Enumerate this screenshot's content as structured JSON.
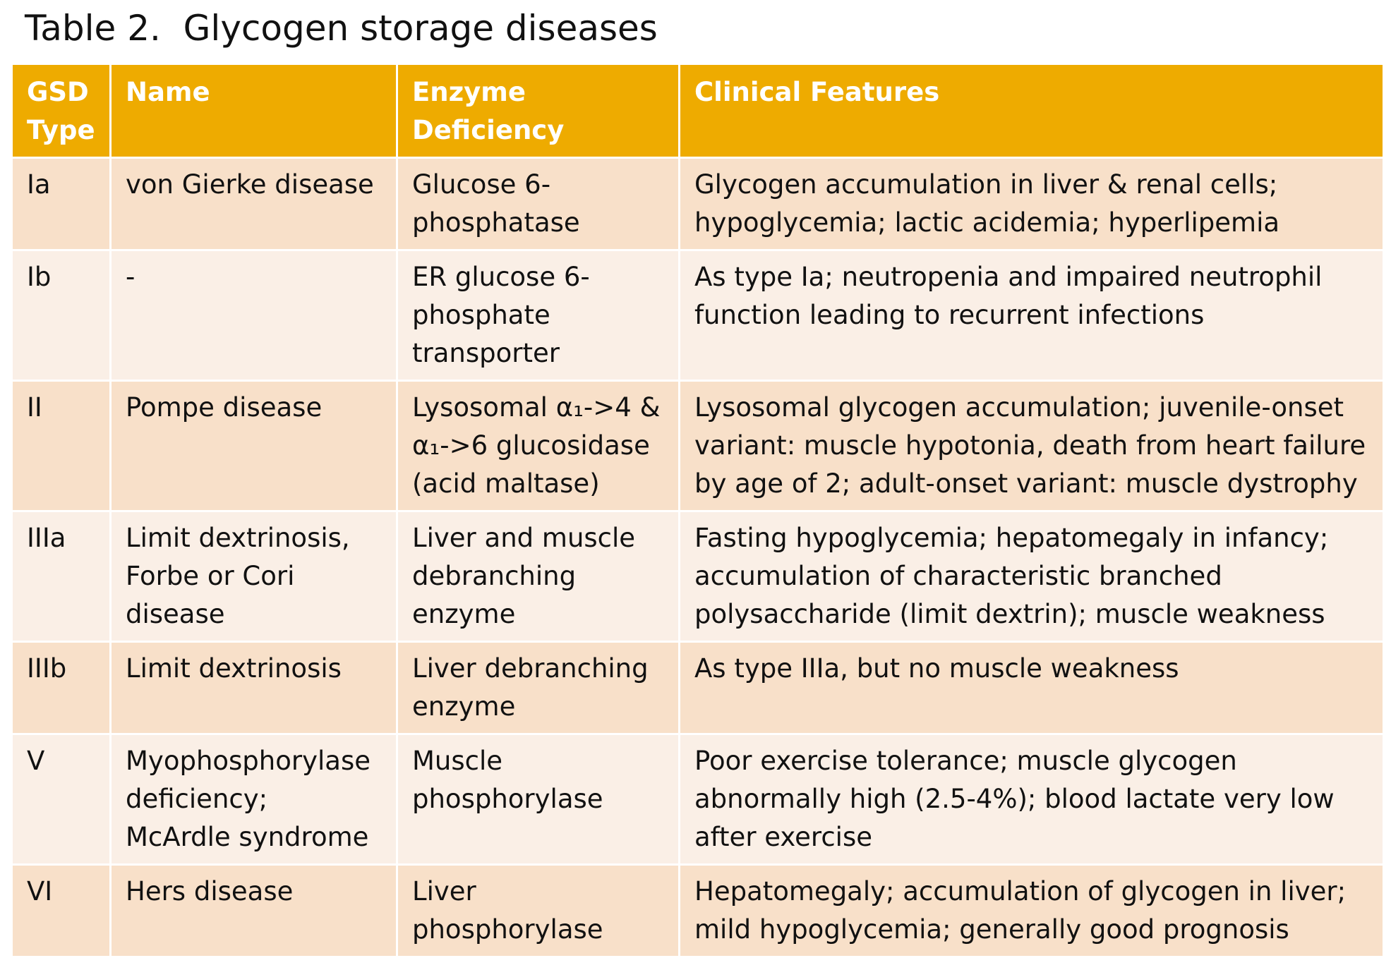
{
  "title": "Table 2.  Glycogen storage diseases",
  "colors": {
    "header_bg": "#eeab00",
    "row_odd_bg": "#f8e0c9",
    "row_even_bg": "#faefe6"
  },
  "headers": [
    [
      "GSD",
      "Type"
    ],
    [
      "Name"
    ],
    [
      "Enzyme",
      "Deficiency"
    ],
    [
      "Clinical Features"
    ]
  ],
  "rows": [
    {
      "type": [
        "Ia"
      ],
      "name": [
        "von Gierke disease"
      ],
      "enzyme": [
        "Glucose 6-",
        "phosphatase"
      ],
      "features": [
        "Glycogen accumulation in liver & renal cells;",
        "hypoglycemia; lactic acidemia; hyperlipemia"
      ]
    },
    {
      "type": [
        "Ib"
      ],
      "name": [
        "-"
      ],
      "enzyme": [
        "ER glucose 6-",
        "phosphate",
        "transporter"
      ],
      "features": [
        "As type Ia; neutropenia and impaired neutrophil",
        "function leading to recurrent infections"
      ]
    },
    {
      "type": [
        "II"
      ],
      "name": [
        "Pompe disease"
      ],
      "enzyme": [
        "Lysosomal α₁->4 &",
        "α₁->6 glucosidase",
        "(acid maltase)"
      ],
      "features": [
        "Lysosomal glycogen accumulation; juvenile-onset",
        "variant: muscle hypotonia, death from heart failure",
        "by age of 2; adult-onset variant: muscle dystrophy"
      ]
    },
    {
      "type": [
        "IIIa"
      ],
      "name": [
        "Limit dextrinosis,",
        "Forbe or Cori",
        "disease"
      ],
      "enzyme": [
        "Liver and muscle",
        "debranching",
        "enzyme"
      ],
      "features": [
        "Fasting hypoglycemia; hepatomegaly in infancy;",
        "accumulation of characteristic branched",
        "polysaccharide (limit dextrin); muscle weakness"
      ]
    },
    {
      "type": [
        "IIIb"
      ],
      "name": [
        "Limit dextrinosis"
      ],
      "enzyme": [
        "Liver debranching",
        "enzyme"
      ],
      "features": [
        "As type IIIa, but no muscle weakness"
      ]
    },
    {
      "type": [
        "V"
      ],
      "name": [
        "Myophosphorylase",
        "deficiency;",
        "McArdle syndrome"
      ],
      "enzyme": [
        "Muscle",
        "phosphorylase"
      ],
      "features": [
        "Poor exercise tolerance; muscle glycogen",
        "abnormally high (2.5-4%); blood lactate very low",
        "after exercise"
      ]
    },
    {
      "type": [
        "VI"
      ],
      "name": [
        "Hers disease"
      ],
      "enzyme": [
        "Liver",
        "phosphorylase"
      ],
      "features": [
        "Hepatomegaly; accumulation of glycogen in liver;",
        "mild hypoglycemia; generally good prognosis"
      ]
    }
  ]
}
